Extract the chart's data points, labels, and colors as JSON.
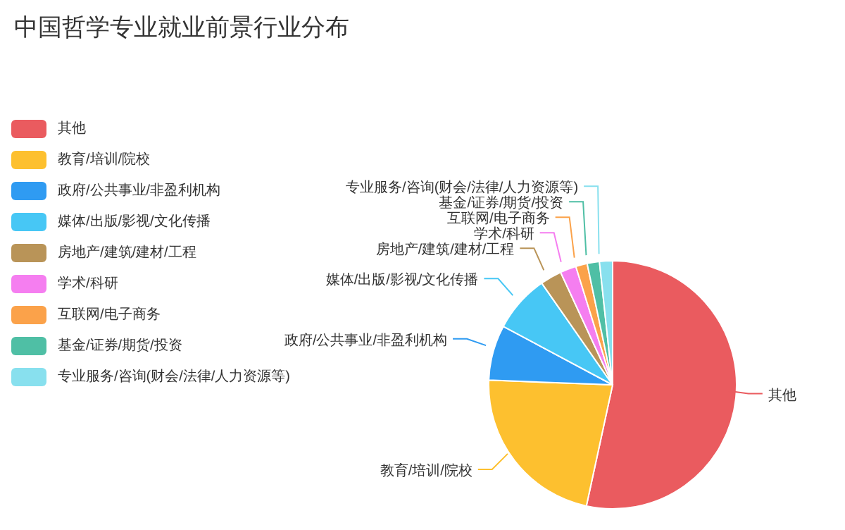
{
  "chart_data": {
    "type": "pie",
    "title": "中国哲学专业就业前景行业分布",
    "categories": [
      "其他",
      "教育/培训/院校",
      "政府/公共事业/非盈利机构",
      "媒体/出版/影视/文化传播",
      "房地产/建筑/建材/工程",
      "学术/科研",
      "互联网/电子商务",
      "基金/证券/期货/投资",
      "专业服务/咨询(财会/法律/人力资源等)"
    ],
    "values": [
      53.4,
      22.2,
      7.2,
      7.5,
      2.8,
      2.1,
      1.5,
      1.6,
      1.7
    ],
    "colors": [
      "#ea5b5f",
      "#fdc02f",
      "#2f9bf2",
      "#47c7f5",
      "#b99458",
      "#f57ef0",
      "#fba24a",
      "#4fbfa5",
      "#88e0ee"
    ],
    "legend": "left"
  }
}
